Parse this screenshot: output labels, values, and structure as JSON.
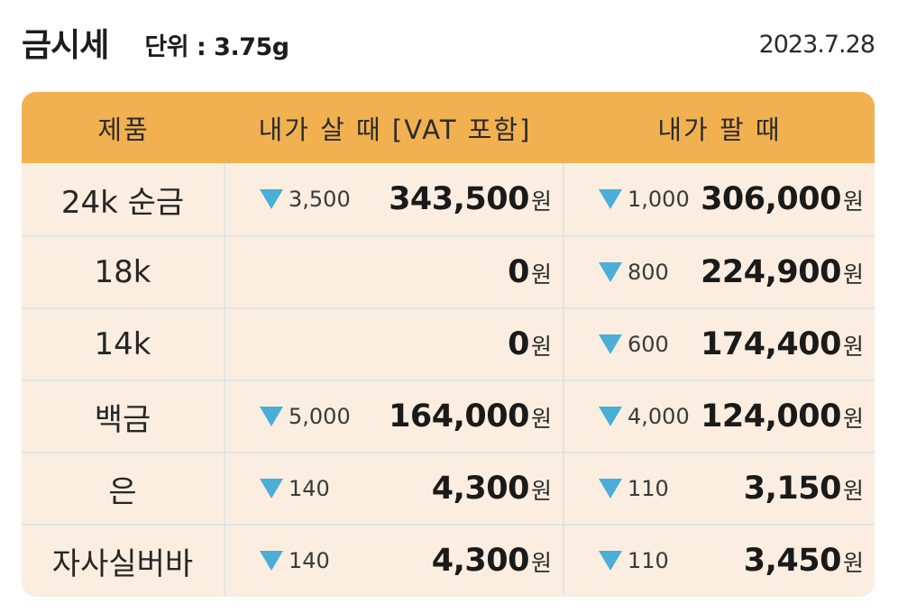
{
  "header": {
    "title": "금시세",
    "unit": "단위 : 3.75g",
    "date": "2023.7.28"
  },
  "table": {
    "columns": [
      "제품",
      "내가 살 때 [VAT 포함]",
      "내가 팔 때"
    ],
    "currency_suffix": "원",
    "colors": {
      "header_bg": "#f1b150",
      "body_bg": "#fbeee0",
      "down_arrow": "#4aaed6"
    },
    "rows": [
      {
        "product": "24k 순금",
        "buy_change": "3,500",
        "buy_price": "343,500",
        "sell_change": "1,000",
        "sell_price": "306,000"
      },
      {
        "product": "18k",
        "buy_change": "",
        "buy_price": "0",
        "sell_change": "800",
        "sell_price": "224,900"
      },
      {
        "product": "14k",
        "buy_change": "",
        "buy_price": "0",
        "sell_change": "600",
        "sell_price": "174,400"
      },
      {
        "product": "백금",
        "buy_change": "5,000",
        "buy_price": "164,000",
        "sell_change": "4,000",
        "sell_price": "124,000"
      },
      {
        "product": "은",
        "buy_change": "140",
        "buy_price": "4,300",
        "sell_change": "110",
        "sell_price": "3,150"
      },
      {
        "product": "자사실버바",
        "buy_change": "140",
        "buy_price": "4,300",
        "sell_change": "110",
        "sell_price": "3,450"
      }
    ]
  }
}
